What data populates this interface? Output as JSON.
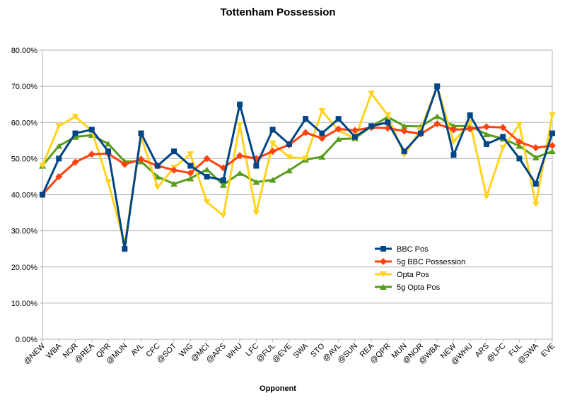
{
  "chart_data": {
    "type": "line",
    "title": "Tottenham Possession",
    "xlabel": "Opponent",
    "ylabel": "",
    "ylim": [
      0,
      0.8
    ],
    "yticks": [
      "0.00%",
      "10.00%",
      "20.00%",
      "30.00%",
      "40.00%",
      "50.00%",
      "60.00%",
      "70.00%",
      "80.00%"
    ],
    "grid": "horizontal",
    "legend_position": "bottom-right",
    "categories": [
      "@NEW",
      "WBA",
      "NOR",
      "@REA",
      "QPR",
      "@MUN",
      "AVL",
      "CFC",
      "@SOT",
      "WIG",
      "@MCI",
      "@ARS",
      "WHU",
      "LFC",
      "@FUL",
      "@EVE",
      "SWA",
      "STO",
      "@AVL",
      "@SUN",
      "REA",
      "@QPR",
      "MUN",
      "@NOR",
      "@WBA",
      "NEW",
      "@WHU",
      "ARS",
      "@LFC",
      "FUL",
      "@SWA",
      "EVE"
    ],
    "series": [
      {
        "name": "BBC Pos",
        "color": "#004586",
        "marker": "square",
        "values": [
          0.4,
          0.5,
          0.57,
          0.58,
          0.52,
          0.25,
          0.57,
          0.48,
          0.52,
          0.48,
          0.45,
          0.44,
          0.65,
          0.48,
          0.58,
          0.54,
          0.61,
          0.57,
          0.61,
          0.56,
          0.59,
          0.6,
          0.52,
          0.57,
          0.7,
          0.51,
          0.62,
          0.54,
          0.56,
          0.5,
          0.43,
          0.57
        ]
      },
      {
        "name": "5g BBC Possession",
        "color": "#ff420e",
        "marker": "diamond",
        "values": [
          0.4,
          0.45,
          0.49,
          0.512,
          0.514,
          0.484,
          0.498,
          0.48,
          0.468,
          0.46,
          0.5,
          0.474,
          0.508,
          0.5,
          0.52,
          0.538,
          0.572,
          0.556,
          0.582,
          0.578,
          0.586,
          0.584,
          0.576,
          0.568,
          0.596,
          0.58,
          0.582,
          0.588,
          0.586,
          0.546,
          0.53,
          0.536
        ]
      },
      {
        "name": "Opta Pos",
        "color": "#ffd320",
        "marker": "triangle-down",
        "values": [
          0.48,
          0.59,
          0.616,
          0.577,
          0.435,
          0.263,
          0.56,
          0.42,
          0.475,
          0.512,
          0.38,
          0.342,
          0.593,
          0.35,
          0.542,
          0.504,
          0.5,
          0.632,
          0.578,
          0.555,
          0.68,
          0.62,
          0.51,
          0.58,
          0.7,
          0.546,
          0.6,
          0.394,
          0.53,
          0.594,
          0.373,
          0.62
        ]
      },
      {
        "name": "5g Opta Pos",
        "color": "#579d1c",
        "marker": "triangle-up",
        "values": [
          0.48,
          0.535,
          0.56,
          0.565,
          0.541,
          0.492,
          0.492,
          0.45,
          0.43,
          0.445,
          0.47,
          0.427,
          0.46,
          0.435,
          0.441,
          0.467,
          0.497,
          0.505,
          0.554,
          0.556,
          0.589,
          0.615,
          0.59,
          0.589,
          0.617,
          0.59,
          0.59,
          0.567,
          0.555,
          0.535,
          0.503,
          0.52
        ]
      }
    ]
  }
}
